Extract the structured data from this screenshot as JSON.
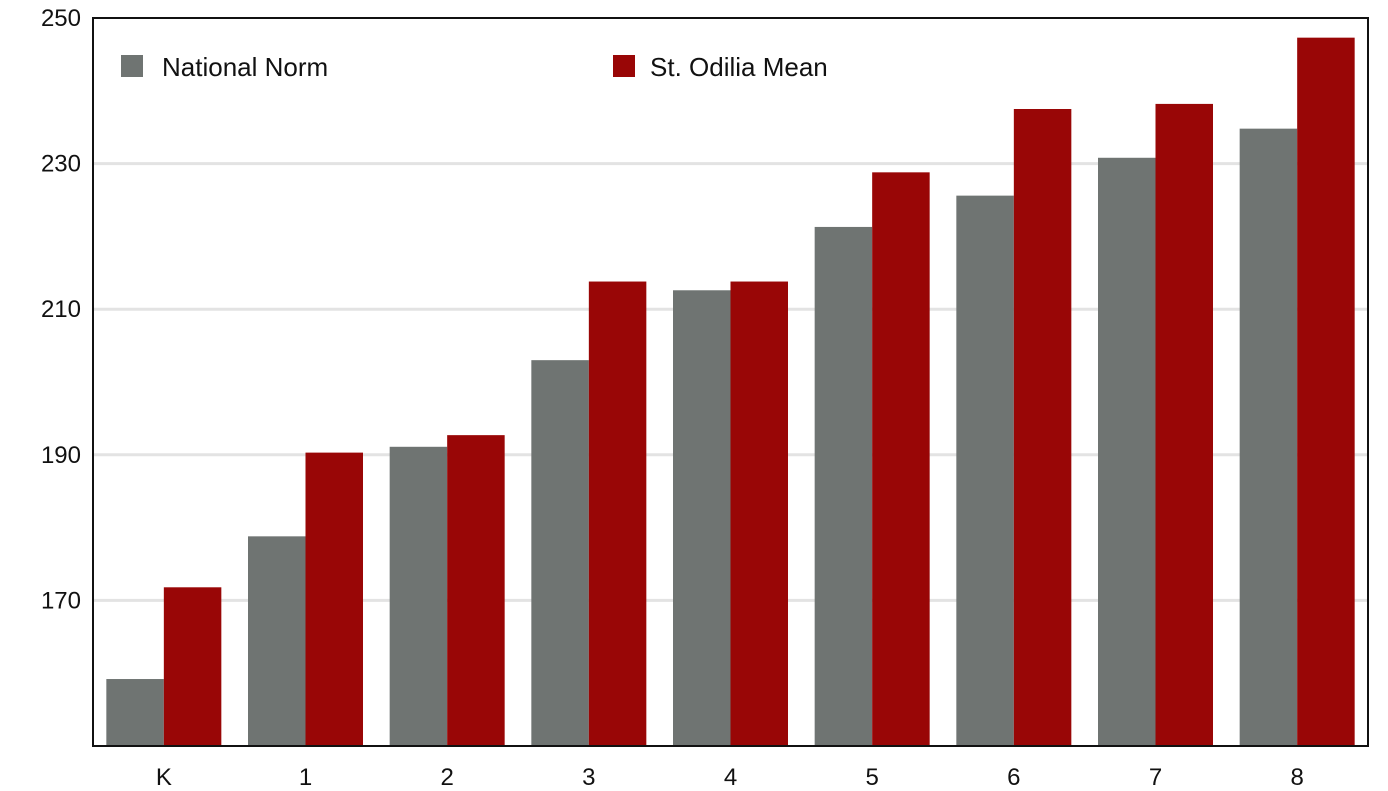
{
  "chart_data": {
    "type": "bar",
    "title": "",
    "xlabel": "",
    "ylabel": "",
    "categories": [
      "K",
      "1",
      "2",
      "3",
      "4",
      "5",
      "6",
      "7",
      "8"
    ],
    "series": [
      {
        "name": "National Norm",
        "color": "#6f7472",
        "values": [
          159.2,
          178.8,
          191.1,
          203.0,
          212.6,
          221.3,
          225.6,
          230.8,
          234.8
        ]
      },
      {
        "name": "St. Odilia Mean",
        "color": "#990606",
        "values": [
          171.8,
          190.3,
          192.7,
          213.8,
          213.8,
          228.8,
          237.5,
          238.2,
          247.3
        ]
      }
    ],
    "ylim": [
      150,
      250
    ],
    "yticks": [
      170,
      190,
      210,
      230,
      250
    ],
    "grid": true,
    "legend": "top"
  }
}
